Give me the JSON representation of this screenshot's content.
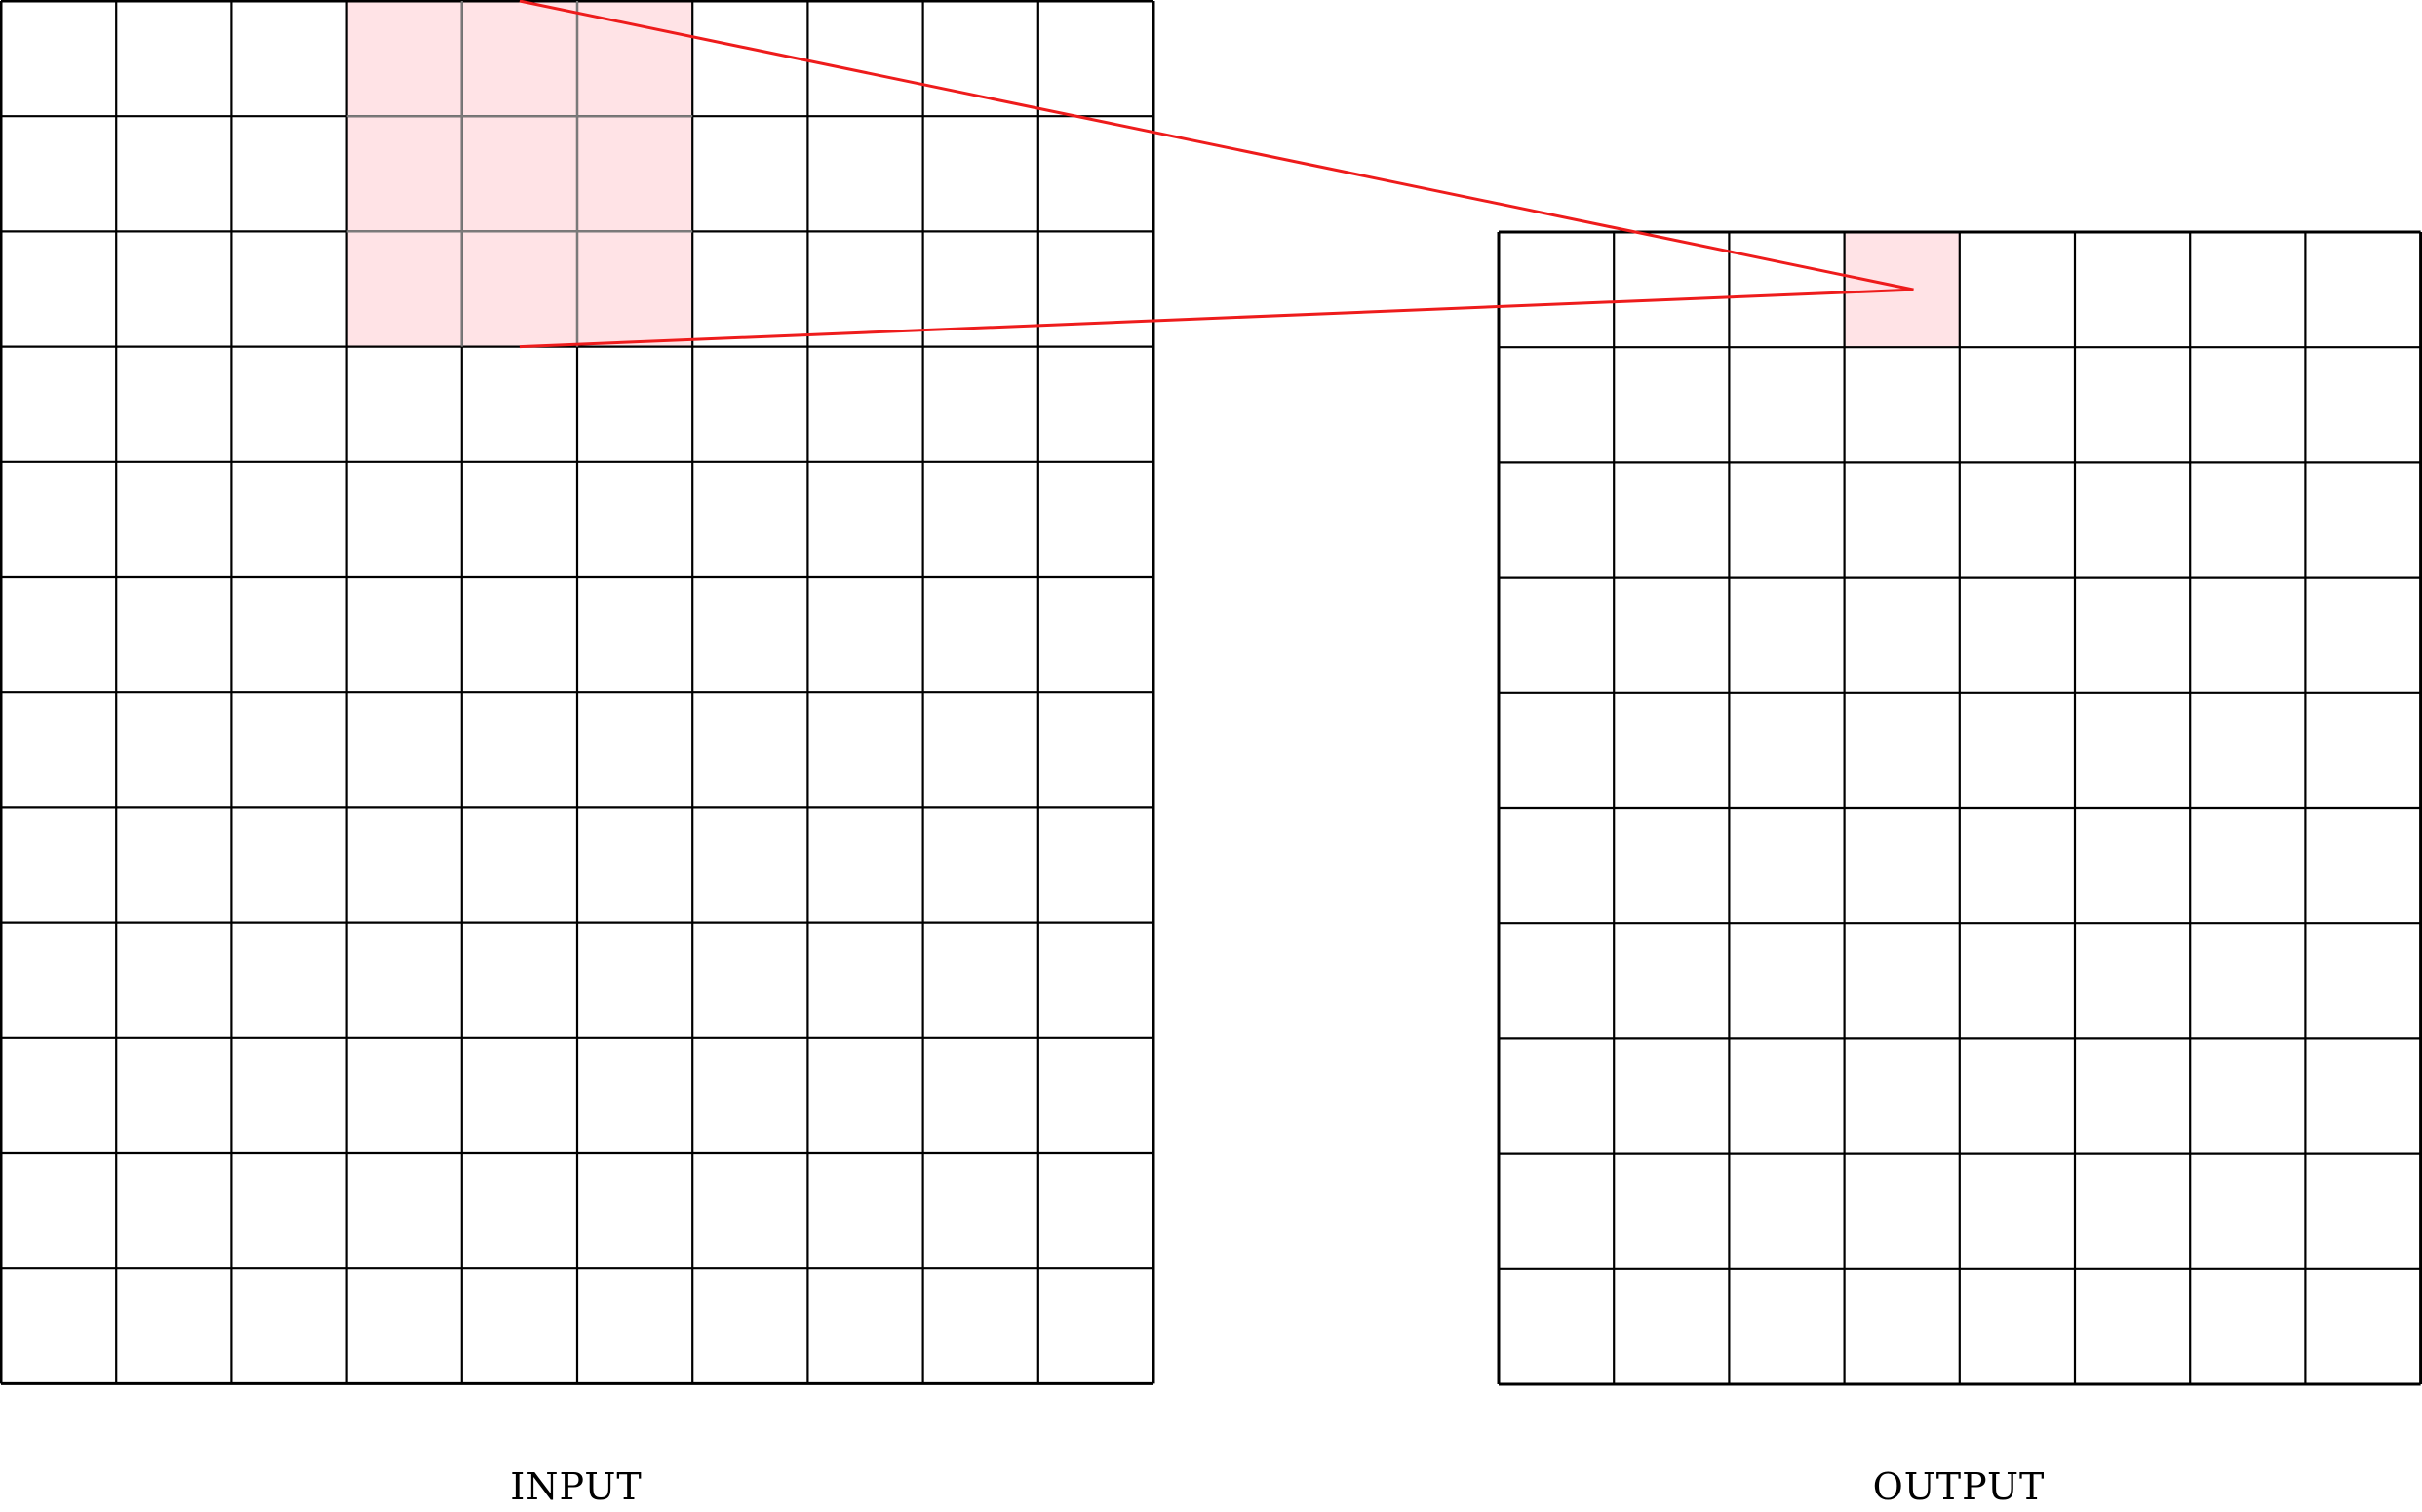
{
  "input_grid": {
    "label": "INPUT",
    "rows": 12,
    "cols": 10,
    "highlight": {
      "row_start": 0,
      "row_end": 2,
      "col_start": 3,
      "col_end": 5
    }
  },
  "output_grid": {
    "label": "OUTPUT",
    "rows": 10,
    "cols": 8,
    "highlight": {
      "row": 0,
      "col": 3
    }
  },
  "colors": {
    "grid_line": "#000000",
    "highlight_fill": "#ffe3e6",
    "highlight_inner_line": "#7a7a7a",
    "connector": "#ee1c1c"
  }
}
